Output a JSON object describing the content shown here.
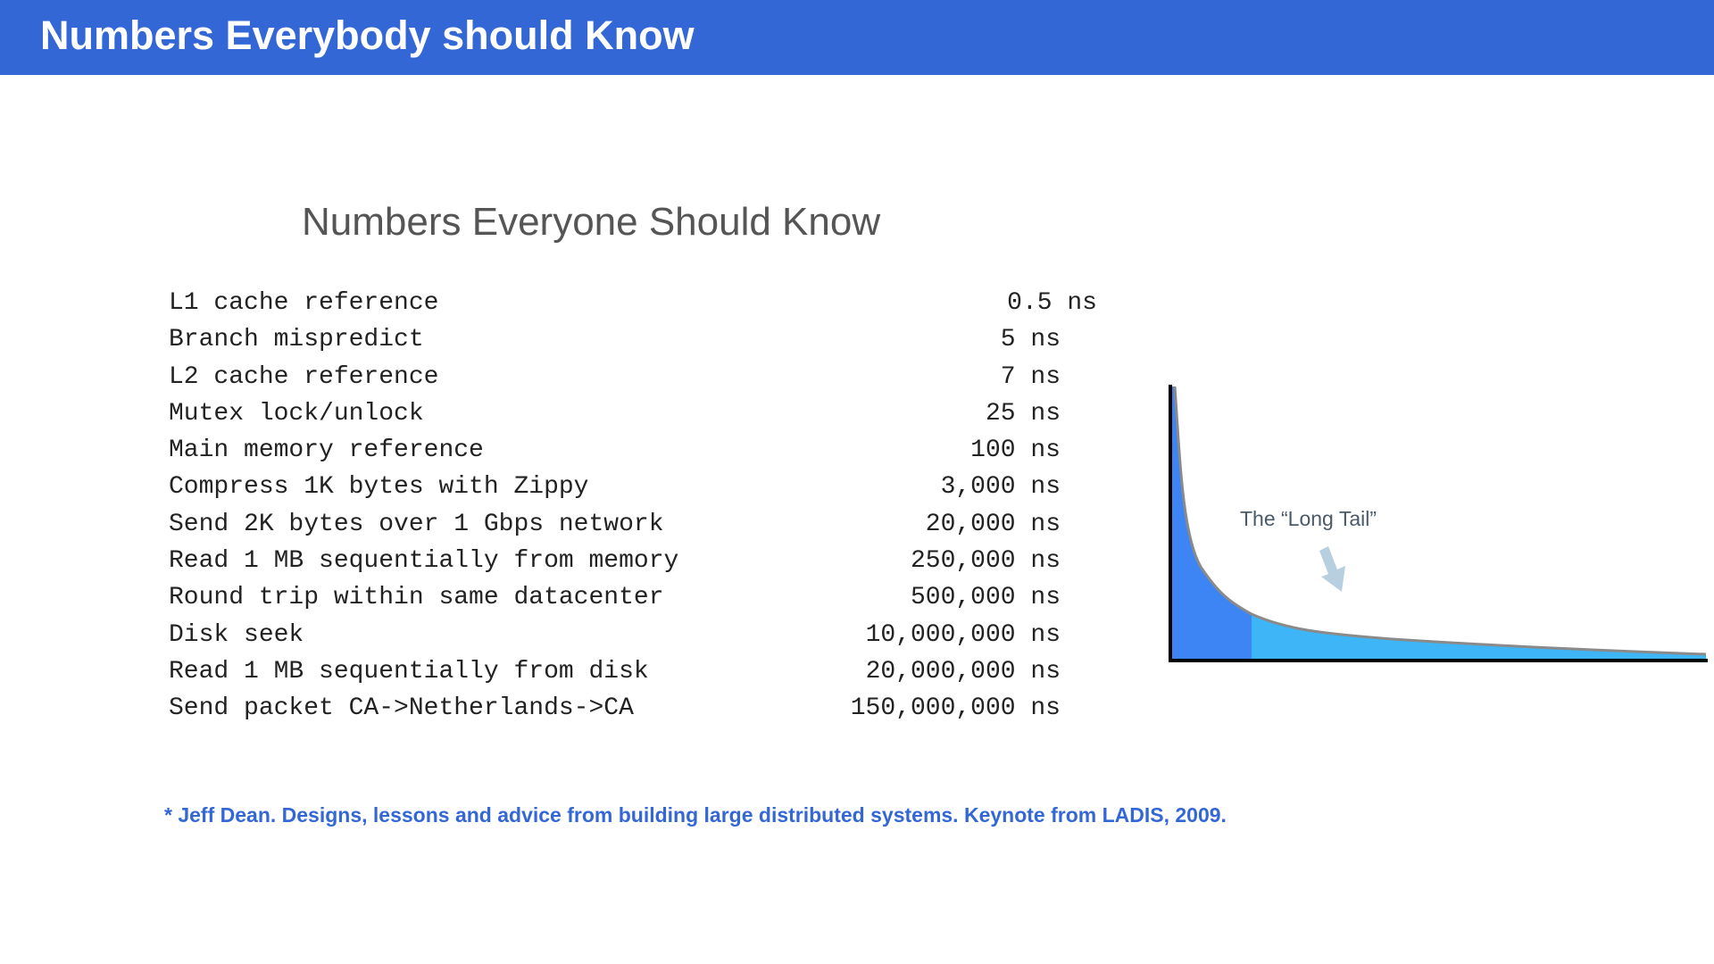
{
  "banner": {
    "title": "Numbers Everybody should Know"
  },
  "slide": {
    "subtitle": "Numbers Everyone Should Know",
    "rows": [
      {
        "label": "L1 cache reference",
        "value": "0.5 ns"
      },
      {
        "label": "Branch mispredict",
        "value": "5 ns"
      },
      {
        "label": "L2 cache reference",
        "value": "7 ns"
      },
      {
        "label": "Mutex lock/unlock",
        "value": "25 ns"
      },
      {
        "label": "Main memory reference",
        "value": "100 ns"
      },
      {
        "label": "Compress 1K bytes with Zippy",
        "value": "3,000 ns"
      },
      {
        "label": "Send 2K bytes over 1 Gbps network",
        "value": "20,000 ns"
      },
      {
        "label": "Read 1 MB sequentially from memory",
        "value": "250,000 ns"
      },
      {
        "label": "Round trip within same datacenter",
        "value": "500,000 ns"
      },
      {
        "label": "Disk seek",
        "value": "10,000,000 ns"
      },
      {
        "label": "Read 1 MB sequentially from disk",
        "value": "20,000,000 ns"
      },
      {
        "label": "Send packet CA->Netherlands->CA",
        "value": "150,000,000 ns"
      }
    ]
  },
  "long_tail_figure": {
    "label": "The “Long Tail”",
    "colors": {
      "head": "#3d85f5",
      "tail": "#3db5f7",
      "curve": "#8a8a8a",
      "arrow": "#b8cfe0"
    }
  },
  "citation": "* Jeff Dean. Designs, lessons and advice from building large distributed systems. Keynote from LADIS, 2009."
}
